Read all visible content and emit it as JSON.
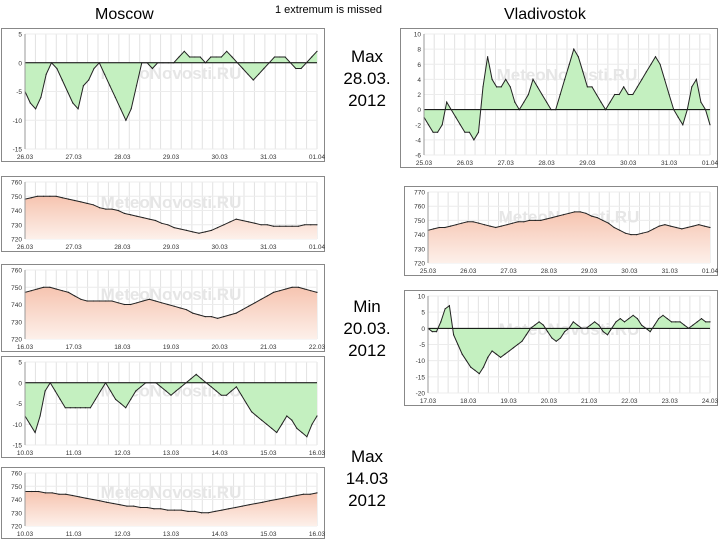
{
  "header": {
    "moscow": "Moscow",
    "note": "1 extremum is missed",
    "vladivostok": "Vladivostok"
  },
  "events": [
    {
      "label": "Max\n28.03.\n2012"
    },
    {
      "label": "Min\n20.03.\n2012"
    },
    {
      "label": "Max\n14.03\n2012"
    }
  ],
  "colors": {
    "temp_fill": "#c4f0c0",
    "press_fill_top": "#f6c4b0",
    "press_fill_bottom": "#fdf0ea",
    "line": "#222222",
    "frame": "#888888"
  },
  "chart_data": [
    {
      "id": "moscow-temp-1",
      "type": "area",
      "kind": "temp",
      "watermark": "MeteoNovosti.RU",
      "ylim": [
        -15,
        5
      ],
      "yticks": [
        "5",
        "0",
        "-5",
        "-10",
        "-15"
      ],
      "xlabels": [
        "26.03",
        "27.03",
        "28.03",
        "29.03",
        "30.03",
        "31.03",
        "01.04"
      ],
      "values": [
        -5,
        -7,
        -8,
        -6,
        -2,
        0,
        -1,
        -3,
        -5,
        -7,
        -8,
        -4,
        -3,
        -1,
        0,
        -2,
        -4,
        -6,
        -8,
        -10,
        -8,
        -4,
        0,
        0,
        -1,
        0,
        0,
        0,
        0,
        1,
        2,
        1,
        1,
        1,
        0,
        1,
        1,
        1,
        2,
        1,
        0,
        -1,
        -2,
        -3,
        -2,
        -1,
        0,
        1,
        1,
        1,
        0,
        -1,
        -1,
        0,
        1,
        2
      ]
    },
    {
      "id": "moscow-press-1",
      "type": "area",
      "kind": "press",
      "watermark": "MeteoNovosti.RU",
      "ylim": [
        720,
        760
      ],
      "yticks": [
        "760",
        "750",
        "740",
        "730",
        "720"
      ],
      "xlabels": [
        "26.03",
        "27.03",
        "28.03",
        "29.03",
        "30.03",
        "31.03",
        "01.04"
      ],
      "values": [
        748,
        749,
        750,
        750,
        750,
        750,
        749,
        748,
        747,
        746,
        745,
        744,
        742,
        741,
        741,
        740,
        738,
        737,
        736,
        735,
        734,
        733,
        731,
        730,
        728,
        727,
        726,
        725,
        724,
        725,
        726,
        728,
        730,
        732,
        734,
        733,
        732,
        731,
        730,
        730,
        729,
        729,
        729,
        729,
        729,
        730,
        730,
        730
      ]
    },
    {
      "id": "moscow-press-2",
      "type": "area",
      "kind": "press",
      "watermark": "MeteoNovosti.RU",
      "ylim": [
        720,
        760
      ],
      "yticks": [
        "760",
        "750",
        "740",
        "730",
        "720"
      ],
      "xlabels": [
        "16.03",
        "17.03",
        "18.03",
        "19.03",
        "20.03",
        "21.03",
        "22.03"
      ],
      "values": [
        747,
        748,
        749,
        750,
        750,
        749,
        748,
        747,
        745,
        743,
        742,
        742,
        742,
        742,
        742,
        741,
        740,
        740,
        741,
        742,
        743,
        742,
        741,
        740,
        739,
        738,
        737,
        735,
        734,
        733,
        733,
        732,
        733,
        734,
        735,
        737,
        739,
        741,
        743,
        745,
        747,
        748,
        749,
        750,
        750,
        749,
        748,
        747
      ]
    },
    {
      "id": "moscow-temp-2",
      "type": "area",
      "kind": "temp",
      "watermark": "MeteoNovosti.RU",
      "ylim": [
        -15,
        5
      ],
      "yticks": [
        "5",
        "0",
        "-5",
        "-10",
        "-15"
      ],
      "xlabels": [
        "10.03",
        "11.03",
        "12.03",
        "13.03",
        "14.03",
        "15.03",
        "16.03"
      ],
      "values": [
        -8,
        -10,
        -12,
        -8,
        -2,
        0,
        -2,
        -4,
        -6,
        -6,
        -6,
        -6,
        -6,
        -6,
        -4,
        -2,
        0,
        -2,
        -4,
        -5,
        -6,
        -4,
        -2,
        -1,
        0,
        0,
        0,
        -1,
        -2,
        -3,
        -2,
        -1,
        0,
        1,
        2,
        1,
        0,
        -1,
        -2,
        -3,
        -3,
        -2,
        -1,
        -3,
        -5,
        -7,
        -8,
        -9,
        -10,
        -11,
        -12,
        -10,
        -8,
        -9,
        -11,
        -12,
        -13,
        -10,
        -8
      ]
    },
    {
      "id": "moscow-press-3",
      "type": "area",
      "kind": "press",
      "watermark": "MeteoNovosti.RU",
      "ylim": [
        720,
        760
      ],
      "yticks": [
        "760",
        "750",
        "740",
        "730",
        "720"
      ],
      "xlabels": [
        "10.03",
        "11.03",
        "12.03",
        "13.03",
        "14.03",
        "15.03",
        "16.03"
      ],
      "values": [
        746,
        746,
        746,
        745,
        745,
        744,
        744,
        743,
        742,
        741,
        740,
        739,
        738,
        737,
        736,
        735,
        735,
        734,
        734,
        733,
        733,
        732,
        732,
        732,
        731,
        731,
        730,
        730,
        731,
        732,
        733,
        734,
        735,
        736,
        737,
        738,
        739,
        740,
        741,
        742,
        743,
        744,
        744,
        745
      ]
    },
    {
      "id": "vlad-temp-1",
      "type": "area",
      "kind": "temp",
      "watermark": "MeteoNovosti.RU",
      "ylim": [
        -6,
        10
      ],
      "yticks": [
        "10",
        "8",
        "6",
        "4",
        "2",
        "0",
        "-2",
        "-4",
        "-6"
      ],
      "xlabels": [
        "25.03",
        "26.03",
        "27.03",
        "28.03",
        "29.03",
        "30.03",
        "31.03",
        "01.04"
      ],
      "values": [
        -1,
        -2,
        -3,
        -3,
        -2,
        1,
        0,
        -1,
        -2,
        -3,
        -3,
        -4,
        -3,
        3,
        7,
        4,
        3,
        3,
        4,
        3,
        1,
        0,
        1,
        2,
        4,
        3,
        2,
        1,
        0,
        0,
        2,
        4,
        6,
        8,
        7,
        5,
        3,
        3,
        2,
        1,
        0,
        1,
        2,
        2,
        3,
        2,
        2,
        3,
        4,
        5,
        6,
        7,
        6,
        4,
        2,
        0,
        -1,
        -2,
        0,
        3,
        4,
        1,
        0,
        -2
      ]
    },
    {
      "id": "vlad-press-1",
      "type": "area",
      "kind": "press",
      "watermark": "MeteoNovosti.RU",
      "ylim": [
        720,
        770
      ],
      "yticks": [
        "770",
        "760",
        "750",
        "740",
        "730",
        "720"
      ],
      "xlabels": [
        "25.03",
        "26.03",
        "27.03",
        "28.03",
        "29.03",
        "30.03",
        "31.03",
        "01.04"
      ],
      "values": [
        743,
        744,
        745,
        745,
        746,
        747,
        748,
        749,
        749,
        748,
        747,
        746,
        745,
        746,
        747,
        748,
        749,
        749,
        750,
        750,
        750,
        751,
        752,
        753,
        754,
        755,
        756,
        756,
        755,
        753,
        752,
        750,
        748,
        745,
        743,
        741,
        740,
        740,
        741,
        742,
        744,
        746,
        747,
        746,
        745,
        744,
        745,
        746,
        747,
        746,
        745
      ]
    },
    {
      "id": "vlad-temp-2",
      "type": "area",
      "kind": "temp",
      "watermark": "MeteoNovosti.RU",
      "ylim": [
        -20,
        10
      ],
      "yticks": [
        "10",
        "5",
        "0",
        "-5",
        "-10",
        "-15",
        "-20"
      ],
      "xlabels": [
        "17.03",
        "18.03",
        "19.03",
        "20.03",
        "21.03",
        "22.03",
        "23.03",
        "24.03"
      ],
      "values": [
        0,
        -1,
        -1,
        2,
        6,
        7,
        -2,
        -5,
        -8,
        -10,
        -12,
        -13,
        -14,
        -12,
        -9,
        -7,
        -8,
        -9,
        -8,
        -7,
        -6,
        -5,
        -4,
        -2,
        0,
        1,
        2,
        1,
        -1,
        -3,
        -4,
        -3,
        -1,
        0,
        2,
        1,
        0,
        0,
        1,
        2,
        1,
        -1,
        -2,
        0,
        2,
        3,
        2,
        3,
        4,
        3,
        1,
        0,
        -1,
        1,
        3,
        4,
        3,
        2,
        2,
        2,
        1,
        0,
        1,
        2,
        3,
        2,
        2
      ]
    }
  ]
}
